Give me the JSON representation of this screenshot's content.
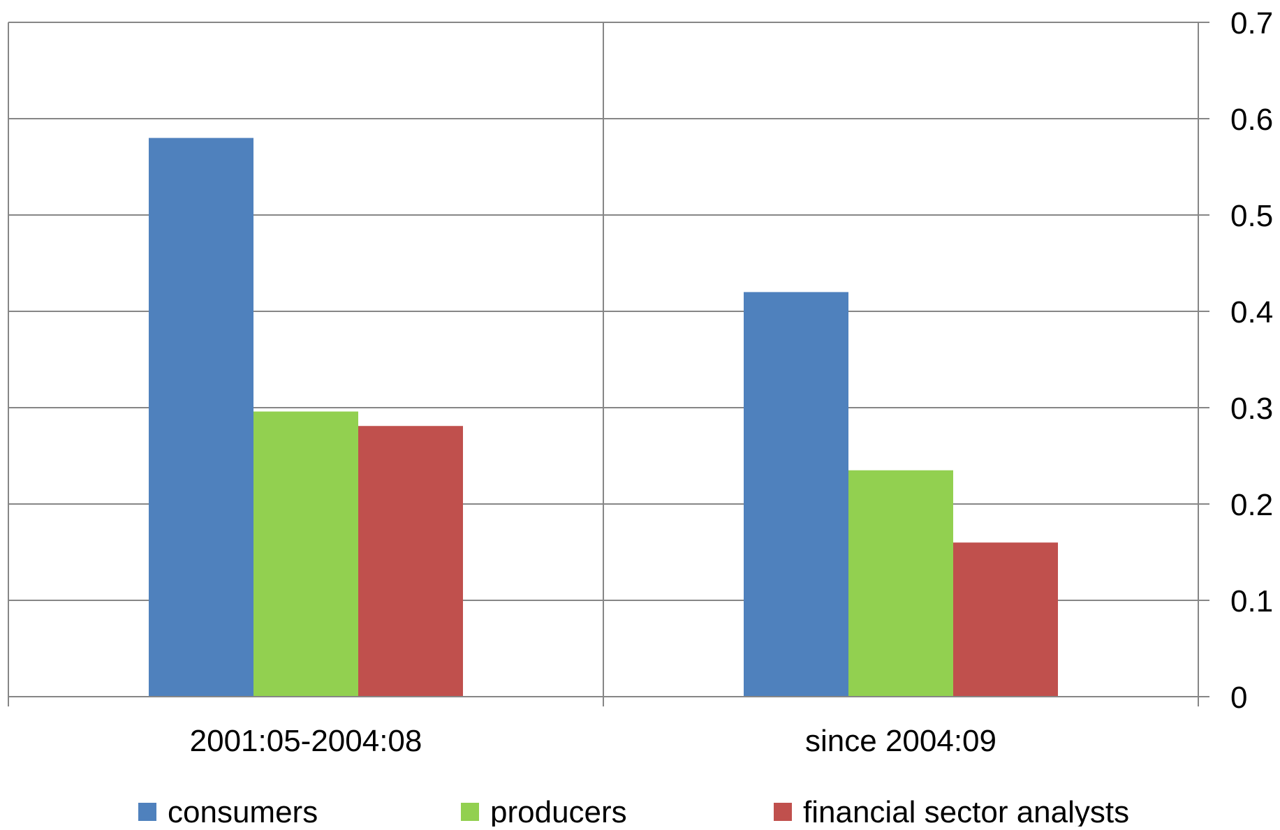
{
  "chart_data": {
    "type": "bar",
    "title": "",
    "xlabel": "",
    "ylabel": "",
    "categories": [
      "2001:05-2004:08",
      "since 2004:09"
    ],
    "series": [
      {
        "name": "consumers",
        "color": "#4F81BD",
        "values": [
          0.58,
          0.42
        ]
      },
      {
        "name": "producers",
        "color": "#92D050",
        "values": [
          0.296,
          0.235
        ]
      },
      {
        "name": "financial sector analysts",
        "color": "#C0504D",
        "values": [
          0.281,
          0.16
        ]
      }
    ],
    "ylim": [
      0,
      0.7
    ],
    "yticks": [
      "0",
      "0.1",
      "0.2",
      "0.3",
      "0.4",
      "0.5",
      "0.6",
      "0.7"
    ],
    "y_axis_side": "right",
    "grid": {
      "horizontal": true,
      "vertical": true
    },
    "legend": {
      "position": "bottom"
    },
    "colors": {
      "grid": "#868686",
      "axis": "#868686"
    }
  }
}
